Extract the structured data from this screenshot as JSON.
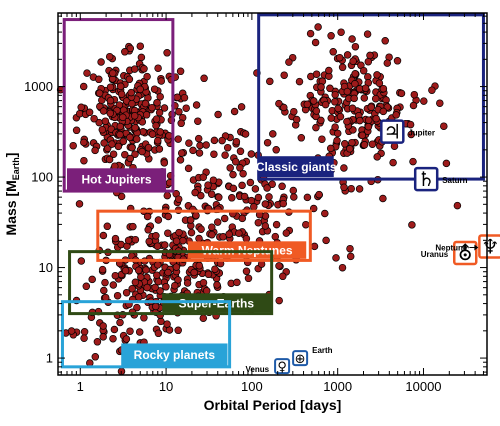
{
  "chart_data": {
    "type": "scatter",
    "title": "",
    "xlabel": "Orbital Period [days]",
    "ylabel_main": "Mass [M",
    "ylabel_sub": "Earth",
    "ylabel_end": "]",
    "x_scale": "log",
    "y_scale": "log",
    "xlim": [
      0.55,
      55000
    ],
    "ylim": [
      0.65,
      6500
    ],
    "x_ticks": [
      {
        "value": 1,
        "label": "1"
      },
      {
        "value": 10,
        "label": "10"
      },
      {
        "value": 100,
        "label": "100"
      },
      {
        "value": 1000,
        "label": "1000"
      },
      {
        "value": 10000,
        "label": "10000"
      }
    ],
    "y_ticks": [
      {
        "value": 1,
        "label": "1"
      },
      {
        "value": 10,
        "label": "10"
      },
      {
        "value": 100,
        "label": "100"
      },
      {
        "value": 1000,
        "label": "1000"
      }
    ],
    "grid": false,
    "point_color": "#9e1b1b",
    "point_edge": "#000000",
    "regions": [
      {
        "label": "Hot Jupiters",
        "color": "#7b1f7a",
        "xmin": 0.65,
        "xmax": 12,
        "ymin": 70,
        "ymax": 5500,
        "label_x": 0.7,
        "label_xmax": 10,
        "label_ylo": 72,
        "label_yhi": 125
      },
      {
        "label": "Classic giants",
        "color": "#1a237e",
        "xmin": 120,
        "xmax": 50000,
        "ymin": 95,
        "ymax": 6200,
        "label_x": 120,
        "label_xmax": 900,
        "label_ylo": 100,
        "label_yhi": 170
      },
      {
        "label": "Warm Neptunes",
        "color": "#f05a24",
        "xmin": 1.6,
        "xmax": 480,
        "ymin": 12,
        "ymax": 42,
        "label_x": 18,
        "label_xmax": 430,
        "label_ylo": 12.5,
        "label_yhi": 19.5
      },
      {
        "label": "Super-Earths",
        "color": "#2f4a15",
        "xmin": 0.75,
        "xmax": 170,
        "ymin": 3.1,
        "ymax": 15,
        "label_x": 9,
        "label_xmax": 165,
        "label_ylo": 3.2,
        "label_yhi": 5.2
      },
      {
        "label": "Rocky planets",
        "color": "#29a3d8",
        "xmin": 0.62,
        "xmax": 55,
        "ymin": 0.8,
        "ymax": 4.2,
        "label_x": 3,
        "label_xmax": 52,
        "label_ylo": 0.82,
        "label_yhi": 1.45
      }
    ],
    "solar_system": [
      {
        "name": "Jupiter",
        "symbol": "♃",
        "period": 4333,
        "mass": 318,
        "box_color": "#1a237e",
        "name_side": "right"
      },
      {
        "name": "Saturn",
        "symbol": "♄",
        "period": 10759,
        "mass": 95,
        "box_color": "#1a237e",
        "name_side": "right"
      },
      {
        "name": "Uranus",
        "symbol": "⛢",
        "period": 30687,
        "mass": 14.5,
        "box_color": "#f05a24",
        "name_side": "left"
      },
      {
        "name": "Neptune",
        "symbol": "♆",
        "period": 60190,
        "mass": 17.1,
        "box_color": "#f05a24",
        "name_side": "left-arrow"
      },
      {
        "name": "Earth",
        "symbol": "⊕",
        "period": 365,
        "mass": 1.0,
        "box_color": "#1e5aa8",
        "name_side": "right"
      },
      {
        "name": "Venus",
        "symbol": "♀",
        "period": 225,
        "mass": 0.815,
        "box_color": "#1e5aa8",
        "name_side": "left"
      }
    ],
    "clusters": [
      {
        "xc": 3.5,
        "yc": 500,
        "sx": 0.28,
        "sy": 0.32,
        "n": 260
      },
      {
        "xc": 1500,
        "yc": 600,
        "sx": 0.38,
        "sy": 0.35,
        "n": 250
      },
      {
        "xc": 15,
        "yc": 15,
        "sx": 0.45,
        "sy": 0.38,
        "n": 230
      },
      {
        "xc": 6,
        "yc": 5,
        "sx": 0.35,
        "sy": 0.3,
        "n": 90
      },
      {
        "xc": 40,
        "yc": 120,
        "sx": 0.5,
        "sy": 0.45,
        "n": 110
      },
      {
        "xc": 300,
        "yc": 30,
        "sx": 0.45,
        "sy": 0.4,
        "n": 50
      },
      {
        "xc": 2.5,
        "yc": 1.8,
        "sx": 0.35,
        "sy": 0.2,
        "n": 25
      }
    ]
  }
}
